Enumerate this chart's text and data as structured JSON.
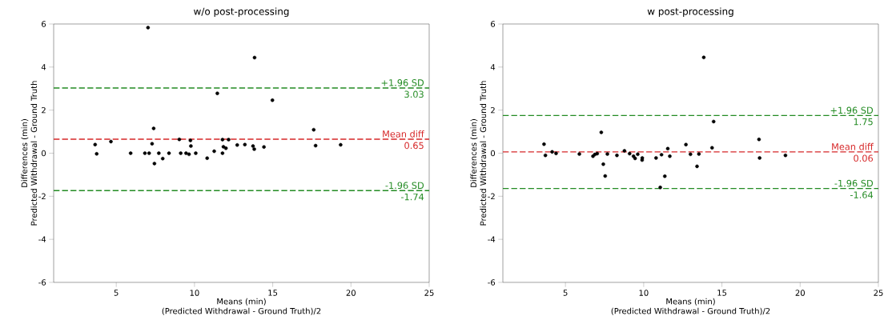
{
  "chart_data": [
    {
      "type": "scatter",
      "title": "w/o post-processing",
      "xlabel": "Means (min)\n(Predicted Withdrawal - Ground Truth)/2",
      "ylabel": "Differences (min)\nPredicted Withdrawal - Ground Truth",
      "xlim": [
        1,
        25
      ],
      "ylim": [
        -6,
        6
      ],
      "xticks": [
        5,
        10,
        15,
        20,
        25
      ],
      "yticks": [
        -6,
        -4,
        -2,
        0,
        2,
        4,
        6
      ],
      "series": [
        {
          "color": "#000000",
          "marker": "circle",
          "x": [
            7.03,
            13.84,
            11.46,
            14.98,
            7.39,
            17.62,
            3.65,
            3.75,
            4.66,
            5.92,
            6.83,
            7.1,
            7.29,
            7.72,
            7.44,
            7.97,
            8.37,
            9.03,
            9.12,
            9.46,
            9.65,
            9.74,
            9.77,
            10.08,
            10.81,
            11.26,
            11.79,
            11.79,
            11.85,
            12.01,
            12.18,
            12.73,
            13.22,
            13.74,
            13.82,
            14.44,
            17.74,
            19.34
          ],
          "values": [
            5.83,
            4.44,
            2.78,
            2.46,
            1.15,
            1.09,
            0.4,
            -0.03,
            0.54,
            0,
            0,
            0,
            0.44,
            0,
            -0.48,
            -0.25,
            0,
            0.64,
            0,
            0,
            -0.05,
            0.59,
            0.33,
            0,
            -0.23,
            0.09,
            0.63,
            0,
            0.3,
            0.23,
            0.63,
            0.38,
            0.4,
            0.33,
            0.19,
            0.29,
            0.35,
            0.39
          ]
        }
      ],
      "ref_lines": [
        {
          "axis": "y",
          "value": 3.03,
          "label": "+1.96 SD",
          "color": "#238b23",
          "line_style": "dashed"
        },
        {
          "axis": "y",
          "value": 0.65,
          "label": "Mean diff",
          "color": "#d62728",
          "line_style": "dashed"
        },
        {
          "axis": "y",
          "value": -1.74,
          "label": "-1.96 SD",
          "color": "#238b23",
          "line_style": "dashed"
        }
      ],
      "annotations": [
        "3.03",
        "0.65",
        "-1.74"
      ]
    },
    {
      "type": "scatter",
      "title": "w post-processing",
      "xlabel": "Means (min)\n(Predicted Withdrawal - Ground Truth)/2",
      "ylabel": "Differences (min)\nPredicted Withdrawal - Ground Truth",
      "xlim": [
        1,
        25
      ],
      "ylim": [
        -6,
        6
      ],
      "xticks": [
        5,
        10,
        15,
        20,
        25
      ],
      "yticks": [
        -6,
        -4,
        -2,
        0,
        2,
        4,
        6
      ],
      "series": [
        {
          "color": "#000000",
          "marker": "circle",
          "x": [
            3.63,
            3.72,
            4.15,
            4.4,
            5.89,
            6.76,
            6.88,
            7.03,
            7.29,
            7.42,
            7.54,
            7.68,
            8.29,
            8.77,
            9.1,
            9.35,
            9.45,
            9.62,
            9.9,
            9.91,
            10.79,
            11.14,
            11.06,
            11.35,
            11.54,
            11.67,
            12.7,
            12.99,
            13.41,
            13.53,
            13.84,
            14.37,
            14.47,
            17.37,
            17.41,
            19.06
          ],
          "values": [
            0.42,
            -0.1,
            0.06,
            -0.01,
            -0.04,
            -0.14,
            -0.06,
            -0.02,
            0.97,
            -0.51,
            -1.06,
            -0.04,
            -0.1,
            0.11,
            -0.02,
            -0.14,
            -0.24,
            -0.05,
            -0.32,
            -0.22,
            -0.22,
            -0.07,
            -1.59,
            -1.07,
            0.21,
            -0.14,
            0.4,
            -0.05,
            -0.61,
            -0.04,
            4.45,
            0.25,
            1.47,
            0.64,
            -0.22,
            -0.1
          ]
        }
      ],
      "ref_lines": [
        {
          "axis": "y",
          "value": 1.75,
          "label": "+1.96 SD",
          "color": "#238b23",
          "line_style": "dashed"
        },
        {
          "axis": "y",
          "value": 0.06,
          "label": "Mean diff",
          "color": "#d62728",
          "line_style": "dashed"
        },
        {
          "axis": "y",
          "value": -1.64,
          "label": "-1.96 SD",
          "color": "#238b23",
          "line_style": "dashed"
        }
      ],
      "annotations": [
        "1.75",
        "0.06",
        "-1.64"
      ]
    }
  ]
}
